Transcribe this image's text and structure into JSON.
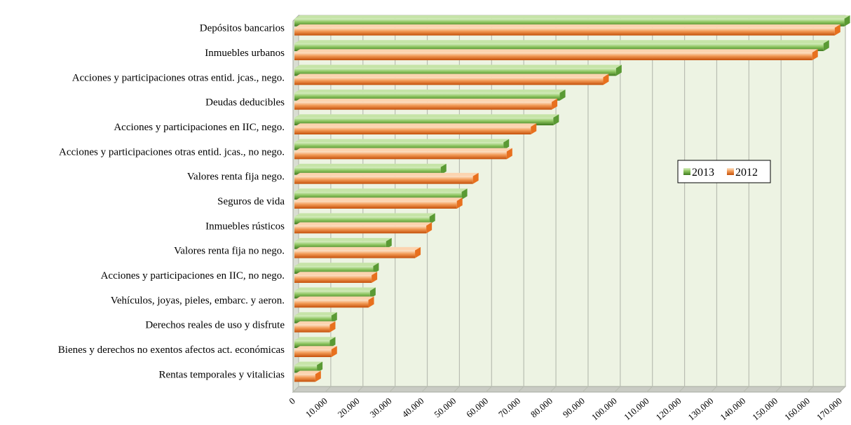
{
  "chart_data": {
    "type": "bar",
    "orientation": "horizontal",
    "categories": [
      "Depósitos bancarios",
      "Inmuebles urbanos",
      "Acciones y participaciones otras entid. jcas., nego.",
      "Deudas deducibles",
      "Acciones y participaciones en IIC, nego.",
      "Acciones y participaciones otras entid. jcas., no nego.",
      "Valores renta fija nego.",
      "Seguros de vida",
      "Inmuebles rústicos",
      "Valores renta fija no nego.",
      "Acciones y participaciones en IIC, no  nego.",
      "Vehículos, joyas, pieles, embarc. y aeron.",
      "Derechos reales de uso y disfrute",
      "Bienes y derechos no exentos afectos act. económicas",
      "Rentas temporales y vitalicias"
    ],
    "series": [
      {
        "name": "2013",
        "values": [
          171000,
          164500,
          100000,
          82500,
          80500,
          65000,
          45500,
          52000,
          42000,
          28500,
          24500,
          23500,
          11500,
          11000,
          7000
        ]
      },
      {
        "name": "2012",
        "values": [
          168000,
          161000,
          96000,
          80000,
          73500,
          66000,
          55500,
          50500,
          41000,
          37500,
          24000,
          23000,
          11000,
          11500,
          6500
        ]
      }
    ],
    "x_ticks": [
      "0",
      "10.000",
      "20.000",
      "30.000",
      "40.000",
      "50.000",
      "60.000",
      "70.000",
      "80.000",
      "90.000",
      "100.000",
      "110.000",
      "120.000",
      "130.000",
      "140.000",
      "150.000",
      "160.000",
      "170.000"
    ],
    "xlim": [
      0,
      170000
    ],
    "grid": true,
    "legend_position": "right",
    "colors": {
      "2013": "#5a9a34",
      "2013_light": "#c6e4a8",
      "2012": "#e8701e",
      "2012_light": "#fcd4b0",
      "plot_bg": "#edf3e3",
      "grid": "#b9bdb2",
      "floor": "#c9cbc4"
    }
  }
}
